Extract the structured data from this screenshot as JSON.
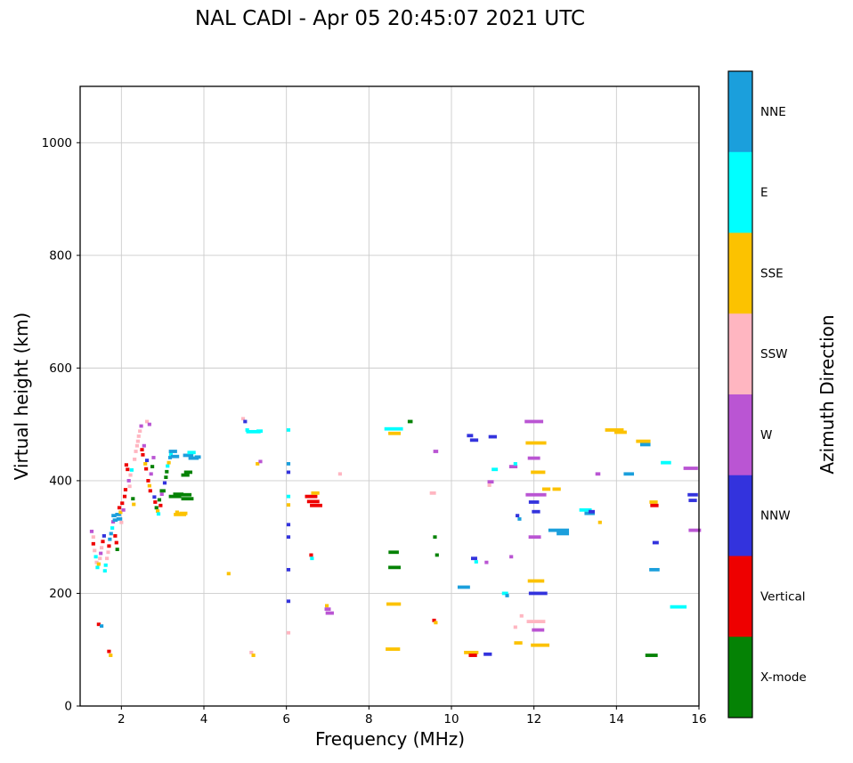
{
  "figure": {
    "title": "NAL CADI - Apr 05 20:45:07 2021 UTC"
  },
  "chart_data": {
    "type": "scatter",
    "title": "NAL CADI - Apr 05 20:45:07 2021 UTC",
    "xlabel": "Frequency (MHz)",
    "ylabel": "Virtual height (km)",
    "xlim": [
      1,
      16
    ],
    "ylim": [
      0,
      1100
    ],
    "xticks": [
      2,
      4,
      6,
      8,
      10,
      12,
      14,
      16
    ],
    "yticks": [
      0,
      200,
      400,
      600,
      800,
      1000
    ],
    "grid": true,
    "marker": "horizontal-dash",
    "colorbar": {
      "label": "Azimuth Direction",
      "position": "right",
      "categories": [
        {
          "name": "NNE",
          "color": "#1b9fdc"
        },
        {
          "name": "E",
          "color": "#00ffff"
        },
        {
          "name": "SSE",
          "color": "#fcc200"
        },
        {
          "name": "SSW",
          "color": "#ffb6c1"
        },
        {
          "name": "W",
          "color": "#ba55d3"
        },
        {
          "name": "NNW",
          "color": "#3333dd"
        },
        {
          "name": "Vertical",
          "color": "#ee0000"
        },
        {
          "name": "X-mode",
          "color": "#058205"
        }
      ]
    },
    "points_format": [
      "frequency_mhz",
      "virtual_height_km",
      "direction",
      "dash_width_mhz"
    ],
    "points": [
      [
        1.28,
        310,
        "W"
      ],
      [
        1.32,
        300,
        "SSW"
      ],
      [
        1.32,
        288,
        "Vertical"
      ],
      [
        1.35,
        276,
        "SSW"
      ],
      [
        1.38,
        265,
        "E"
      ],
      [
        1.4,
        255,
        "SSW"
      ],
      [
        1.42,
        246,
        "E"
      ],
      [
        1.45,
        252,
        "SSE"
      ],
      [
        1.48,
        262,
        "SSW"
      ],
      [
        1.5,
        271,
        "W"
      ],
      [
        1.52,
        281,
        "SSW"
      ],
      [
        1.55,
        292,
        "Vertical"
      ],
      [
        1.58,
        302,
        "NNW"
      ],
      [
        1.45,
        145,
        "Vertical"
      ],
      [
        1.52,
        142,
        "NNE"
      ],
      [
        1.6,
        240,
        "E"
      ],
      [
        1.62,
        250,
        "E"
      ],
      [
        1.65,
        262,
        "SSW"
      ],
      [
        1.68,
        273,
        "SSW"
      ],
      [
        1.7,
        284,
        "Vertical"
      ],
      [
        1.72,
        296,
        "NNE"
      ],
      [
        1.75,
        306,
        "NNE"
      ],
      [
        1.7,
        97,
        "Vertical"
      ],
      [
        1.74,
        90,
        "SSE"
      ],
      [
        1.78,
        316,
        "E"
      ],
      [
        1.8,
        327,
        "W"
      ],
      [
        1.82,
        338,
        "NNE",
        0.12
      ],
      [
        1.85,
        330,
        "NNE",
        0.12
      ],
      [
        1.85,
        302,
        "Vertical"
      ],
      [
        1.88,
        290,
        "Vertical"
      ],
      [
        1.9,
        278,
        "X-mode"
      ],
      [
        1.92,
        340,
        "NNE",
        0.14
      ],
      [
        1.95,
        332,
        "NNE",
        0.14
      ],
      [
        1.95,
        352,
        "Vertical"
      ],
      [
        1.98,
        344,
        "SSE"
      ],
      [
        2.0,
        326,
        "SSW"
      ],
      [
        2.02,
        360,
        "Vertical"
      ],
      [
        2.05,
        348,
        "W"
      ],
      [
        2.08,
        372,
        "Vertical"
      ],
      [
        2.1,
        384,
        "Vertical"
      ],
      [
        2.12,
        428,
        "Vertical"
      ],
      [
        2.15,
        420,
        "Vertical"
      ],
      [
        2.18,
        400,
        "W"
      ],
      [
        2.2,
        390,
        "SSW"
      ],
      [
        2.22,
        410,
        "SSW"
      ],
      [
        2.25,
        419,
        "E"
      ],
      [
        2.28,
        368,
        "X-mode"
      ],
      [
        2.3,
        358,
        "SSE"
      ],
      [
        2.32,
        438,
        "SSW"
      ],
      [
        2.35,
        452,
        "SSW"
      ],
      [
        2.38,
        462,
        "SSW"
      ],
      [
        2.4,
        470,
        "SSW"
      ],
      [
        2.42,
        479,
        "SSW"
      ],
      [
        2.45,
        488,
        "SSW"
      ],
      [
        2.48,
        497,
        "W"
      ],
      [
        2.62,
        505,
        "SSW"
      ],
      [
        2.68,
        500,
        "W"
      ],
      [
        2.5,
        455,
        "Vertical"
      ],
      [
        2.52,
        446,
        "Vertical"
      ],
      [
        2.55,
        462,
        "W"
      ],
      [
        2.58,
        430,
        "SSE"
      ],
      [
        2.6,
        421,
        "Vertical"
      ],
      [
        2.62,
        436,
        "NNW"
      ],
      [
        2.65,
        400,
        "Vertical"
      ],
      [
        2.68,
        391,
        "SSE"
      ],
      [
        2.7,
        382,
        "Vertical"
      ],
      [
        2.72,
        412,
        "W"
      ],
      [
        2.75,
        425,
        "X-mode"
      ],
      [
        2.78,
        441,
        "W"
      ],
      [
        2.8,
        371,
        "NNW"
      ],
      [
        2.82,
        362,
        "Vertical"
      ],
      [
        2.85,
        352,
        "X-mode"
      ],
      [
        2.88,
        346,
        "SSE"
      ],
      [
        2.9,
        341,
        "E"
      ],
      [
        2.92,
        366,
        "X-mode"
      ],
      [
        2.95,
        356,
        "Vertical"
      ],
      [
        2.98,
        376,
        "W"
      ],
      [
        3.0,
        382,
        "X-mode",
        0.14
      ],
      [
        3.05,
        396,
        "NNW"
      ],
      [
        3.08,
        406,
        "X-mode"
      ],
      [
        3.1,
        416,
        "X-mode"
      ],
      [
        3.12,
        426,
        "E"
      ],
      [
        3.15,
        432,
        "SSE"
      ],
      [
        3.18,
        441,
        "NNE"
      ],
      [
        3.2,
        447,
        "E"
      ],
      [
        3.25,
        452,
        "NNE",
        0.2
      ],
      [
        3.3,
        443,
        "NNE",
        0.2
      ],
      [
        3.3,
        372,
        "X-mode",
        0.3
      ],
      [
        3.38,
        376,
        "X-mode",
        0.25
      ],
      [
        3.35,
        344,
        "SSE"
      ],
      [
        3.42,
        340,
        "SSE",
        0.3
      ],
      [
        3.5,
        342,
        "SSE",
        0.2
      ],
      [
        3.55,
        375,
        "X-mode",
        0.3
      ],
      [
        3.6,
        368,
        "X-mode",
        0.3
      ],
      [
        3.55,
        410,
        "X-mode",
        0.2
      ],
      [
        3.62,
        415,
        "X-mode",
        0.2
      ],
      [
        3.62,
        445,
        "NNE",
        0.25
      ],
      [
        3.7,
        450,
        "E",
        0.2
      ],
      [
        3.75,
        440,
        "NNE",
        0.25
      ],
      [
        3.85,
        442,
        "NNE",
        0.15
      ],
      [
        4.6,
        235,
        "SSE"
      ],
      [
        4.95,
        510,
        "SSW"
      ],
      [
        5.0,
        505,
        "NNW"
      ],
      [
        5.05,
        490,
        "E"
      ],
      [
        5.2,
        487,
        "E",
        0.35
      ],
      [
        5.35,
        488,
        "E",
        0.15
      ],
      [
        5.3,
        430,
        "SSE"
      ],
      [
        5.37,
        434,
        "W"
      ],
      [
        5.15,
        95,
        "SSW"
      ],
      [
        5.2,
        90,
        "SSE"
      ],
      [
        6.05,
        490,
        "E"
      ],
      [
        6.05,
        430,
        "NNE"
      ],
      [
        6.05,
        415,
        "NNW"
      ],
      [
        6.05,
        372,
        "E"
      ],
      [
        6.05,
        357,
        "SSE"
      ],
      [
        6.05,
        322,
        "NNW"
      ],
      [
        6.05,
        300,
        "NNW"
      ],
      [
        6.05,
        242,
        "NNW"
      ],
      [
        6.05,
        186,
        "NNW"
      ],
      [
        6.05,
        130,
        "SSW"
      ],
      [
        6.6,
        372,
        "Vertical",
        0.3
      ],
      [
        6.65,
        363,
        "Vertical",
        0.3
      ],
      [
        6.7,
        378,
        "SSE",
        0.2
      ],
      [
        6.72,
        356,
        "Vertical",
        0.3
      ],
      [
        6.6,
        268,
        "Vertical"
      ],
      [
        6.62,
        262,
        "E"
      ],
      [
        6.98,
        178,
        "SSE"
      ],
      [
        7.0,
        172,
        "W",
        0.15
      ],
      [
        7.05,
        165,
        "W",
        0.2
      ],
      [
        7.3,
        412,
        "SSW"
      ],
      [
        8.6,
        492,
        "E",
        0.45
      ],
      [
        8.62,
        484,
        "SSE",
        0.3
      ],
      [
        8.6,
        273,
        "X-mode",
        0.25
      ],
      [
        8.62,
        246,
        "X-mode",
        0.3
      ],
      [
        8.6,
        181,
        "SSE",
        0.35
      ],
      [
        8.58,
        101,
        "SSE",
        0.35
      ],
      [
        9.0,
        505,
        "X-mode",
        0.12
      ],
      [
        9.55,
        378,
        "SSW",
        0.15
      ],
      [
        9.62,
        452,
        "W",
        0.12
      ],
      [
        9.6,
        300,
        "X-mode"
      ],
      [
        9.65,
        268,
        "X-mode"
      ],
      [
        9.58,
        152,
        "Vertical"
      ],
      [
        9.62,
        148,
        "SSE"
      ],
      [
        10.3,
        211,
        "NNE",
        0.3
      ],
      [
        10.45,
        480,
        "NNW",
        0.15
      ],
      [
        10.55,
        472,
        "NNW",
        0.2
      ],
      [
        10.55,
        262,
        "NNW",
        0.15
      ],
      [
        10.6,
        256,
        "E"
      ],
      [
        10.48,
        95,
        "SSE",
        0.35
      ],
      [
        10.52,
        90,
        "Vertical",
        0.2
      ],
      [
        10.88,
        92,
        "NNW",
        0.2
      ],
      [
        10.85,
        255,
        "W"
      ],
      [
        10.95,
        398,
        "W",
        0.15
      ],
      [
        10.92,
        392,
        "SSW"
      ],
      [
        11.0,
        478,
        "NNW",
        0.2
      ],
      [
        11.05,
        420,
        "E",
        0.15
      ],
      [
        11.3,
        200,
        "E",
        0.15
      ],
      [
        11.35,
        196,
        "NNE"
      ],
      [
        11.45,
        265,
        "W"
      ],
      [
        11.5,
        425,
        "W",
        0.2
      ],
      [
        11.55,
        430,
        "E"
      ],
      [
        11.55,
        140,
        "SSW"
      ],
      [
        11.62,
        112,
        "SSE",
        0.2
      ],
      [
        11.6,
        338,
        "NNW"
      ],
      [
        11.65,
        332,
        "NNE"
      ],
      [
        11.7,
        160,
        "SSW"
      ],
      [
        12.0,
        505,
        "W",
        0.45
      ],
      [
        12.05,
        467,
        "SSE",
        0.5
      ],
      [
        12.0,
        440,
        "W",
        0.3
      ],
      [
        12.1,
        415,
        "SSE",
        0.35
      ],
      [
        12.05,
        375,
        "W",
        0.5
      ],
      [
        12.0,
        362,
        "NNW",
        0.25
      ],
      [
        12.05,
        345,
        "NNW",
        0.2
      ],
      [
        12.02,
        300,
        "W",
        0.3
      ],
      [
        12.05,
        222,
        "SSE",
        0.4
      ],
      [
        12.1,
        200,
        "NNW",
        0.45
      ],
      [
        12.05,
        150,
        "SSW",
        0.45
      ],
      [
        12.1,
        135,
        "W",
        0.3
      ],
      [
        12.15,
        108,
        "SSE",
        0.45
      ],
      [
        12.3,
        385,
        "SSE",
        0.2
      ],
      [
        12.55,
        385,
        "SSE",
        0.2
      ],
      [
        12.6,
        312,
        "NNE",
        0.5
      ],
      [
        12.7,
        306,
        "NNE",
        0.3
      ],
      [
        13.25,
        348,
        "E",
        0.3
      ],
      [
        13.35,
        342,
        "NNE",
        0.25
      ],
      [
        13.4,
        345,
        "NNW",
        0.15
      ],
      [
        13.55,
        412,
        "W",
        0.12
      ],
      [
        13.6,
        326,
        "SSE"
      ],
      [
        13.95,
        490,
        "SSE",
        0.45
      ],
      [
        14.1,
        486,
        "SSE",
        0.3
      ],
      [
        14.3,
        412,
        "NNE",
        0.25
      ],
      [
        14.65,
        470,
        "SSE",
        0.35
      ],
      [
        14.7,
        464,
        "NNE",
        0.25
      ],
      [
        14.9,
        362,
        "SSE",
        0.2
      ],
      [
        14.92,
        356,
        "Vertical",
        0.2
      ],
      [
        14.95,
        290,
        "NNW",
        0.15
      ],
      [
        14.92,
        242,
        "NNE",
        0.25
      ],
      [
        14.85,
        90,
        "X-mode",
        0.3
      ],
      [
        15.2,
        432,
        "E",
        0.25
      ],
      [
        15.5,
        176,
        "E",
        0.4
      ],
      [
        15.8,
        422,
        "W",
        0.35
      ],
      [
        15.85,
        375,
        "NNW",
        0.25
      ],
      [
        15.85,
        365,
        "NNW",
        0.2
      ],
      [
        15.9,
        312,
        "W",
        0.3
      ]
    ]
  }
}
